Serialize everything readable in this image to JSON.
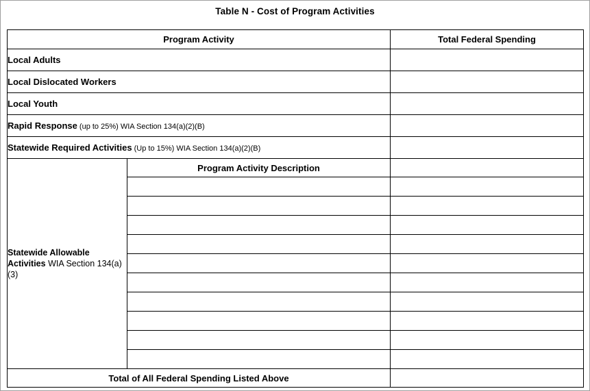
{
  "title": "Table N - Cost of Program Activities",
  "colors": {
    "border": "#000000",
    "text": "#000000",
    "background": "#ffffff"
  },
  "table": {
    "headers": {
      "program_activity": "Program Activity",
      "total_federal_spending": "Total Federal Spending"
    },
    "activity_rows": [
      {
        "bold": "Local Adults",
        "note": "",
        "value": ""
      },
      {
        "bold": "Local Dislocated Workers",
        "note": "",
        "value": ""
      },
      {
        "bold": "Local Youth",
        "note": "",
        "value": ""
      },
      {
        "bold": "Rapid Response",
        "note": " (up to 25%) WIA Section 134(a)(2)(B)",
        "value": ""
      },
      {
        "bold": "Statewide Required Activities",
        "note": " (Up to 15%) WIA Section 134(a)(2)(B)",
        "value": ""
      }
    ],
    "statewide_allowable": {
      "bold": "Statewide Allowable Activities",
      "note": " WIA Section 134(a)(3)",
      "description_header": "Program Activity Description",
      "header_row_value": "",
      "empty_row_count": 10
    },
    "total_row": {
      "label": "Total of All Federal Spending Listed Above",
      "value": ""
    }
  }
}
